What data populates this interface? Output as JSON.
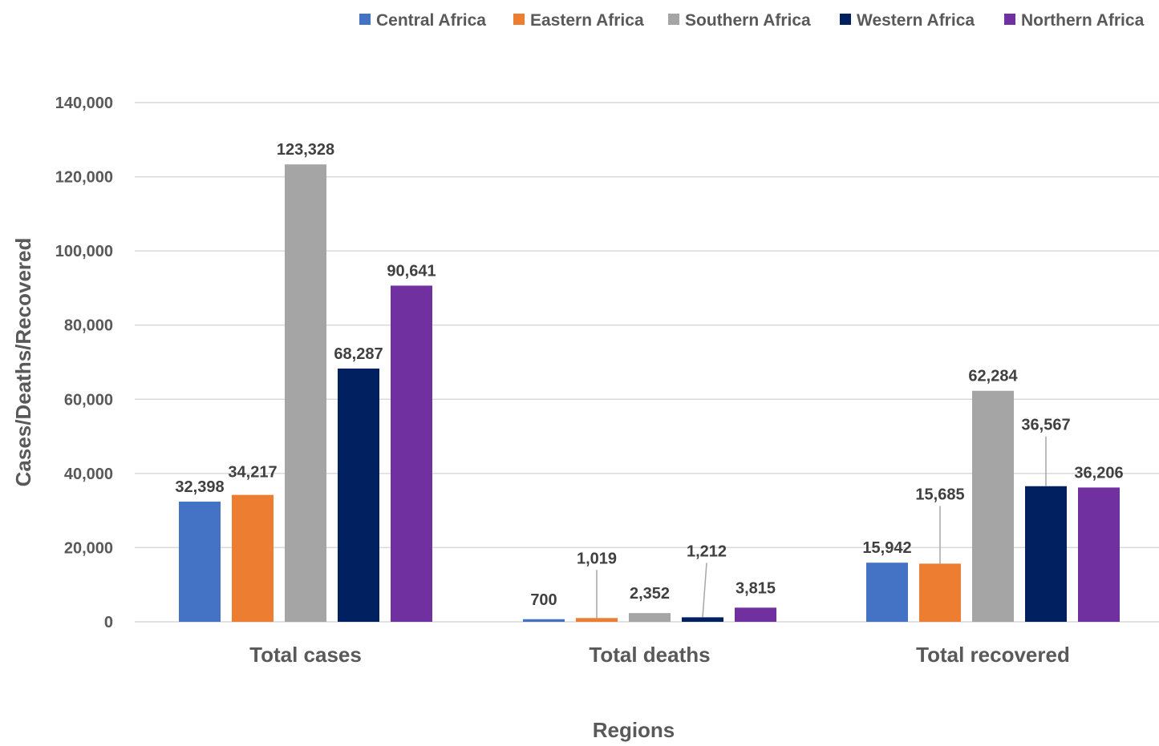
{
  "chart_data": {
    "type": "bar",
    "title": "",
    "xlabel": "Regions",
    "ylabel": "Cases/Deaths/Recovered",
    "ylim": [
      0,
      140000
    ],
    "yticks": [
      0,
      20000,
      40000,
      60000,
      80000,
      100000,
      120000,
      140000
    ],
    "ytick_labels": [
      "0",
      "20,000",
      "40,000",
      "60,000",
      "80,000",
      "100,000",
      "120,000",
      "140,000"
    ],
    "grid": true,
    "legend_position": "top-right",
    "categories": [
      "Total cases",
      "Total deaths",
      "Total recovered"
    ],
    "series": [
      {
        "name": "Central Africa",
        "color": "#4472C4",
        "values": [
          32398,
          700,
          15942
        ],
        "labels": [
          "32,398",
          "700",
          "15,942"
        ]
      },
      {
        "name": "Eastern Africa",
        "color": "#ED7D31",
        "values": [
          34217,
          1019,
          15685
        ],
        "labels": [
          "34,217",
          "1,019",
          "15,685"
        ]
      },
      {
        "name": "Southern Africa",
        "color": "#A5A5A5",
        "values": [
          123328,
          2352,
          62284
        ],
        "labels": [
          "123,328",
          "2,352",
          "62,284"
        ]
      },
      {
        "name": "Western Africa",
        "color": "#002060",
        "values": [
          68287,
          1212,
          36567
        ],
        "labels": [
          "68,287",
          "1,212",
          "36,567"
        ]
      },
      {
        "name": "Northern Africa",
        "color": "#7030A0",
        "values": [
          90641,
          3815,
          36206
        ],
        "labels": [
          "90,641",
          "3,815",
          "36,206"
        ]
      }
    ]
  }
}
